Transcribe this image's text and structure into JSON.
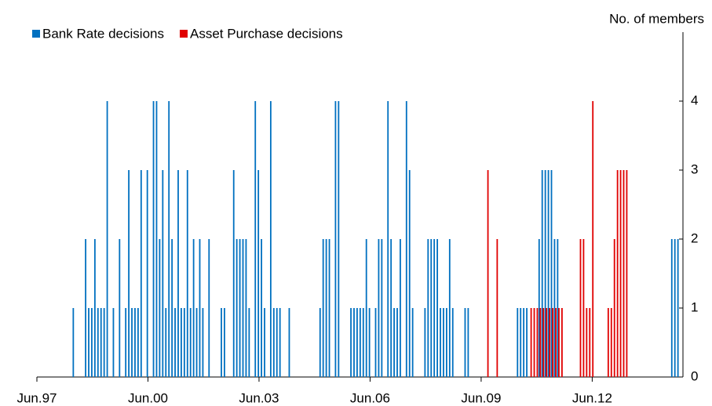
{
  "chart_data": {
    "type": "bar",
    "y_label": "No. of members",
    "categories": [
      "Jun.97",
      null,
      null,
      null,
      null,
      null,
      null,
      null,
      null,
      null,
      null,
      null,
      null,
      null,
      null,
      null,
      null,
      null,
      null,
      null,
      null,
      null,
      null,
      null,
      null,
      null,
      null,
      null,
      null,
      null,
      null,
      null,
      null,
      null,
      null,
      null,
      "Jun.00",
      null,
      null,
      null,
      null,
      null,
      null,
      null,
      null,
      null,
      null,
      null,
      null,
      null,
      null,
      null,
      null,
      null,
      null,
      null,
      null,
      null,
      null,
      null,
      null,
      null,
      null,
      null,
      null,
      null,
      null,
      null,
      null,
      null,
      null,
      null,
      "Jun.03",
      null,
      null,
      null,
      null,
      null,
      null,
      null,
      null,
      null,
      null,
      null,
      null,
      null,
      null,
      null,
      null,
      null,
      null,
      null,
      null,
      null,
      null,
      null,
      null,
      null,
      null,
      null,
      null,
      null,
      null,
      null,
      null,
      null,
      null,
      null,
      "Jun.06",
      null,
      null,
      null,
      null,
      null,
      null,
      null,
      null,
      null,
      null,
      null,
      null,
      null,
      null,
      null,
      null,
      null,
      null,
      null,
      null,
      null,
      null,
      null,
      null,
      null,
      null,
      null,
      null,
      null,
      null,
      null,
      null,
      null,
      null,
      null,
      "Jun.09",
      null,
      null,
      null,
      null,
      null,
      null,
      null,
      null,
      null,
      null,
      null,
      null,
      null,
      null,
      null,
      null,
      null,
      null,
      null,
      null,
      null,
      null,
      null,
      null,
      null,
      null,
      null,
      null,
      null,
      null,
      null,
      null,
      null,
      null,
      null,
      "Jun.12",
      null,
      null,
      null,
      null,
      null,
      null,
      null,
      null,
      null,
      null,
      null,
      null,
      null,
      null,
      null,
      null,
      null,
      null,
      null,
      null,
      null,
      null,
      null,
      null,
      null,
      null,
      null,
      null,
      null
    ],
    "series": [
      {
        "name": "Bank Rate decisions",
        "color": "#0070c0",
        "values": [
          0,
          0,
          0,
          0,
          0,
          0,
          0,
          0,
          0,
          0,
          0,
          0,
          1,
          0,
          0,
          0,
          2,
          1,
          1,
          2,
          1,
          1,
          1,
          4,
          0,
          1,
          0,
          2,
          0,
          1,
          3,
          1,
          1,
          1,
          3,
          0,
          3,
          0,
          4,
          4,
          2,
          3,
          1,
          4,
          2,
          1,
          3,
          1,
          1,
          3,
          1,
          2,
          1,
          2,
          1,
          0,
          2,
          0,
          0,
          0,
          1,
          1,
          0,
          0,
          3,
          2,
          2,
          2,
          2,
          1,
          0,
          4,
          3,
          2,
          1,
          0,
          4,
          1,
          1,
          1,
          0,
          0,
          1,
          0,
          0,
          0,
          0,
          0,
          0,
          0,
          0,
          0,
          1,
          2,
          2,
          2,
          0,
          4,
          4,
          0,
          0,
          0,
          1,
          1,
          1,
          1,
          1,
          2,
          1,
          0,
          1,
          2,
          2,
          0,
          4,
          2,
          1,
          1,
          2,
          0,
          4,
          3,
          1,
          0,
          0,
          0,
          1,
          2,
          2,
          2,
          2,
          1,
          1,
          1,
          2,
          1,
          0,
          0,
          0,
          1,
          1,
          0,
          0,
          0,
          0,
          0,
          0,
          0,
          0,
          0,
          0,
          0,
          0,
          0,
          0,
          0,
          1,
          1,
          1,
          1,
          0,
          0,
          0,
          2,
          3,
          3,
          3,
          3,
          2,
          2,
          0,
          0,
          0,
          0,
          0,
          0,
          0,
          0,
          0,
          0,
          0,
          0,
          0,
          0,
          0,
          0,
          0,
          0,
          0,
          0,
          0,
          0,
          0,
          0,
          0,
          0,
          0,
          0,
          0,
          0,
          0,
          0,
          0,
          0,
          0,
          0,
          2,
          2,
          2,
          0
        ]
      },
      {
        "name": "Asset Purchase decisions",
        "color": "#e00000",
        "values": [
          0,
          0,
          0,
          0,
          0,
          0,
          0,
          0,
          0,
          0,
          0,
          0,
          0,
          0,
          0,
          0,
          0,
          0,
          0,
          0,
          0,
          0,
          0,
          0,
          0,
          0,
          0,
          0,
          0,
          0,
          0,
          0,
          0,
          0,
          0,
          0,
          0,
          0,
          0,
          0,
          0,
          0,
          0,
          0,
          0,
          0,
          0,
          0,
          0,
          0,
          0,
          0,
          0,
          0,
          0,
          0,
          0,
          0,
          0,
          0,
          0,
          0,
          0,
          0,
          0,
          0,
          0,
          0,
          0,
          0,
          0,
          0,
          0,
          0,
          0,
          0,
          0,
          0,
          0,
          0,
          0,
          0,
          0,
          0,
          0,
          0,
          0,
          0,
          0,
          0,
          0,
          0,
          0,
          0,
          0,
          0,
          0,
          0,
          0,
          0,
          0,
          0,
          0,
          0,
          0,
          0,
          0,
          0,
          0,
          0,
          0,
          0,
          0,
          0,
          0,
          0,
          0,
          0,
          0,
          0,
          0,
          0,
          0,
          0,
          0,
          0,
          0,
          0,
          0,
          0,
          0,
          0,
          0,
          0,
          0,
          0,
          0,
          0,
          0,
          0,
          0,
          0,
          0,
          0,
          0,
          0,
          3,
          0,
          0,
          2,
          0,
          0,
          0,
          0,
          0,
          0,
          0,
          0,
          0,
          0,
          1,
          1,
          1,
          1,
          1,
          1,
          1,
          1,
          1,
          1,
          1,
          0,
          0,
          0,
          0,
          0,
          2,
          2,
          1,
          1,
          4,
          0,
          0,
          0,
          0,
          1,
          1,
          2,
          3,
          3,
          3,
          3,
          0,
          0,
          0,
          0,
          0,
          0,
          0,
          0,
          0,
          0,
          0,
          0,
          0,
          0,
          0,
          0,
          0,
          0
        ]
      }
    ],
    "ylim": [
      0,
      5
    ],
    "yticks": [
      0,
      1,
      2,
      3,
      4
    ],
    "legend": "top-left"
  }
}
